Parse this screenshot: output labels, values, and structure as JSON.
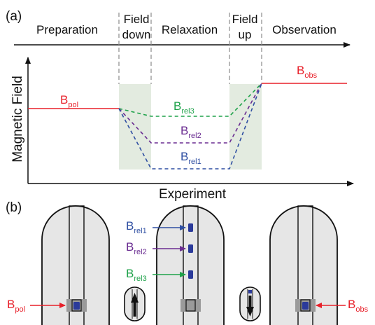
{
  "panel_a": {
    "label": "(a)",
    "phases": [
      "Preparation",
      "Field",
      "down",
      "Relaxation",
      "Field",
      "up",
      "Observation"
    ],
    "y_axis_label": "Magnetic Field",
    "x_axis_label": "Experiment",
    "field_labels": {
      "pol": {
        "base": "B",
        "sub": "pol"
      },
      "obs": {
        "base": "B",
        "sub": "obs"
      },
      "rel3": {
        "base": "B",
        "sub": "rel3"
      },
      "rel2": {
        "base": "B",
        "sub": "rel2"
      },
      "rel1": {
        "base": "B",
        "sub": "rel1"
      }
    }
  },
  "panel_b": {
    "label": "(b)",
    "labels": {
      "pol": {
        "base": "B",
        "sub": "pol"
      },
      "rel1": {
        "base": "B",
        "sub": "rel1"
      },
      "rel2": {
        "base": "B",
        "sub": "rel2"
      },
      "rel3": {
        "base": "B",
        "sub": "rel3"
      },
      "obs": {
        "base": "B",
        "sub": "obs"
      }
    }
  },
  "colors": {
    "pol": "#e8202a",
    "obs": "#e8202a",
    "rel3": "#1fa24a",
    "rel2": "#6a2c91",
    "rel1": "#2f4fa2",
    "shade": "#e3ebe0",
    "magnet": "#e6e6e6"
  }
}
